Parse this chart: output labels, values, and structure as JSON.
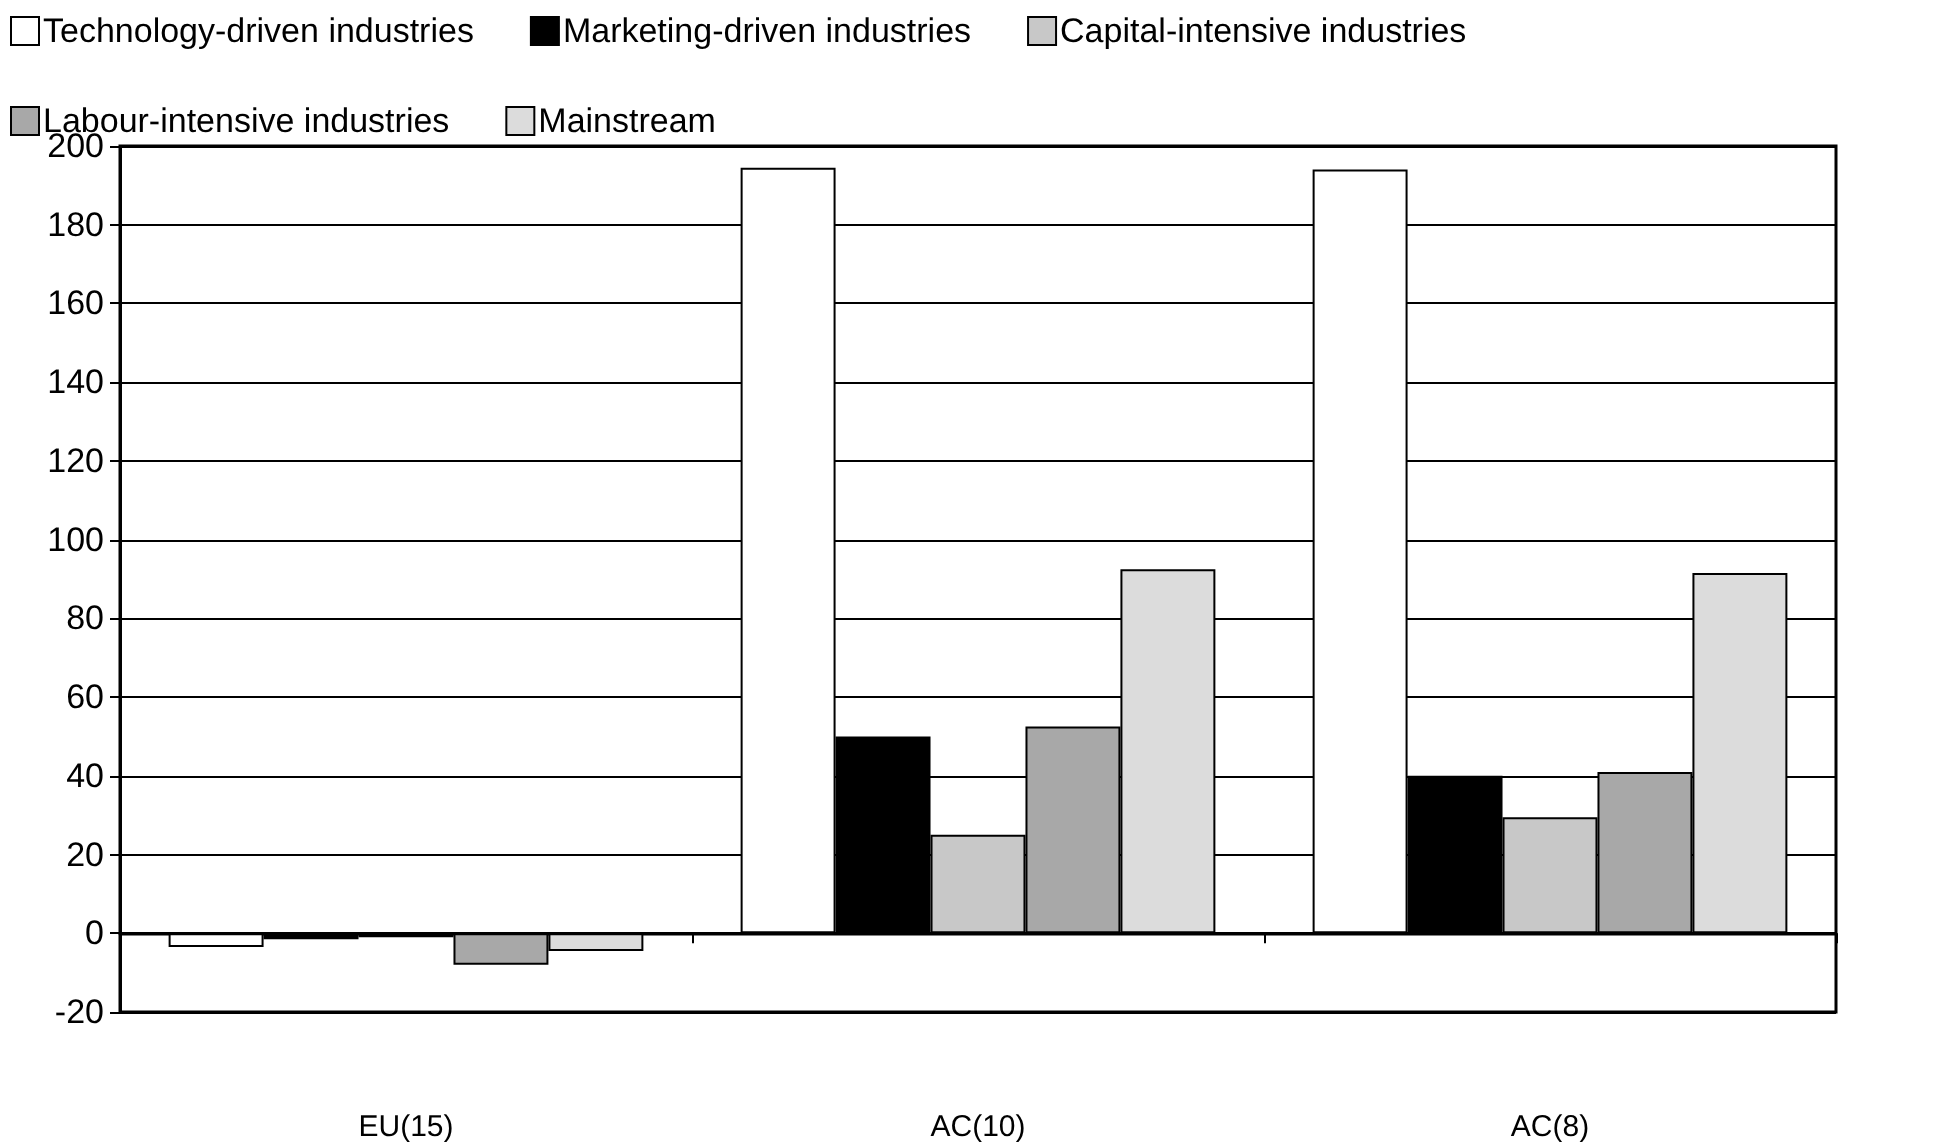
{
  "chart_data": {
    "type": "bar",
    "categories": [
      "EU(15)",
      "AC(10)",
      "AC(8)"
    ],
    "series": [
      {
        "name": "Technology-driven industries",
        "color": "#ffffff",
        "values": [
          -3.5,
          194.5,
          194
        ]
      },
      {
        "name": "Marketing-driven industries",
        "color": "#000000",
        "values": [
          -1.5,
          50,
          40
        ]
      },
      {
        "name": "Capital-intensive industries",
        "color": "#c8c8c8",
        "values": [
          -1,
          25,
          29.5
        ]
      },
      {
        "name": "Labour-intensive industries",
        "color": "#a8a8a8",
        "values": [
          -8,
          52.5,
          41
        ]
      },
      {
        "name": "Mainstream",
        "color": "#dcdcdc",
        "values": [
          -4.5,
          92.5,
          91.5
        ]
      }
    ],
    "ylim": [
      -20,
      200
    ],
    "yticks": [
      -20,
      0,
      20,
      40,
      60,
      80,
      100,
      120,
      140,
      160,
      180,
      200
    ],
    "grid": "y",
    "legend": "top"
  }
}
